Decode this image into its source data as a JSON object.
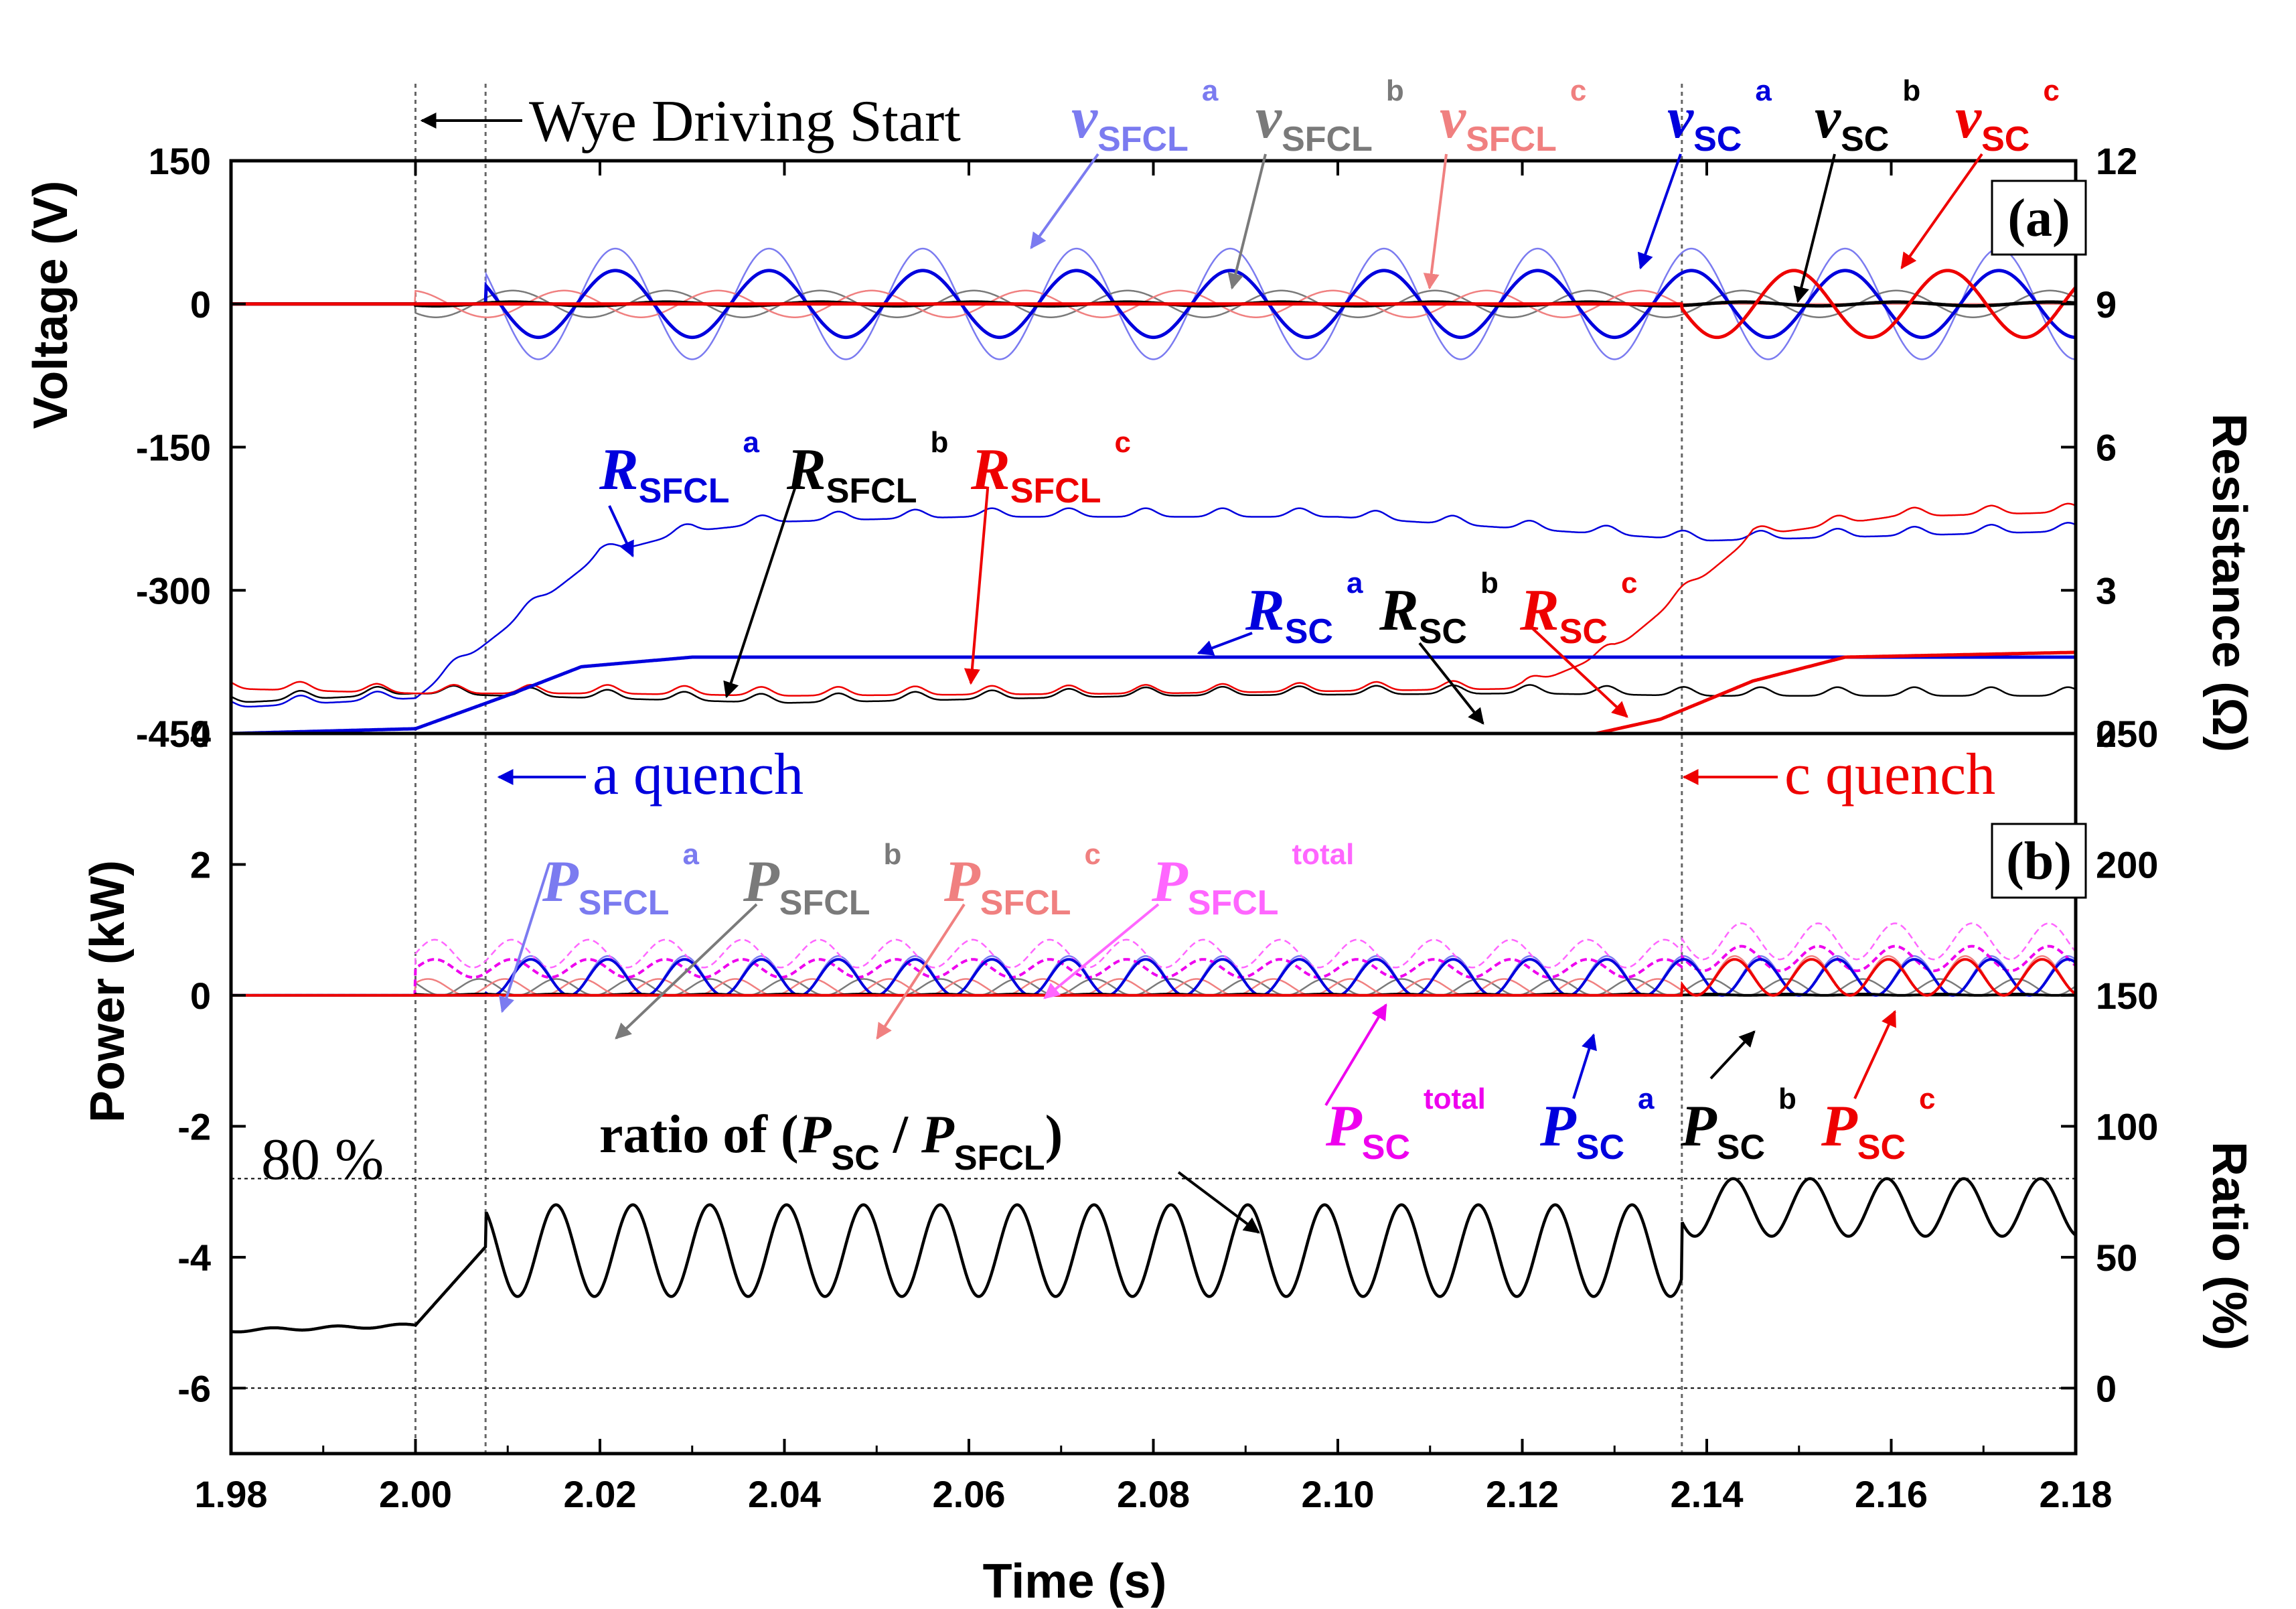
{
  "chart_data": [
    {
      "type": "line",
      "panel": "(a)",
      "xlabel": "Time (s)",
      "ylabel": "Voltage (V)",
      "y2label": "Resistance (Ω)",
      "xlim": [
        1.98,
        2.18
      ],
      "ylim": [
        -450,
        150
      ],
      "y2lim": [
        0,
        12
      ],
      "xticks": [
        "1.98",
        "2.00",
        "2.02",
        "2.04",
        "2.06",
        "2.08",
        "2.10",
        "2.12",
        "2.14",
        "2.16",
        "2.18"
      ],
      "yticks": [
        "150",
        "0",
        "-150",
        "-300",
        "-450"
      ],
      "y2ticks": [
        "12",
        "9",
        "6",
        "3",
        "0"
      ],
      "annotations": [
        "Wye Driving Start",
        "a quench",
        "c quench"
      ],
      "fault_start_s": 2.0,
      "a_quench_s": 2.0076,
      "c_quench_s": 2.1373,
      "series": [
        {
          "name": "v_SFCL^a",
          "axis": "voltage",
          "color": "#7b7bf0",
          "amplitude_V": 58,
          "phase_deg": -90,
          "start_s": 2.0076,
          "stop_s": 2.18
        },
        {
          "name": "v_SFCL^b",
          "axis": "voltage",
          "color": "#7a7a7a",
          "amplitude_V": 14,
          "phase_deg": 150,
          "start_s": 2.0,
          "stop_s": 2.18
        },
        {
          "name": "v_SFCL^c",
          "axis": "voltage",
          "color": "#f08080",
          "amplitude_V": 14,
          "phase_deg": 30,
          "start_s": 2.0,
          "stop_s": 2.1373,
          "amplitude_after_V": 50
        },
        {
          "name": "v_SC^a",
          "axis": "voltage",
          "color": "#0000dd",
          "amplitude_V": 35,
          "phase_deg": -90,
          "start_s": 2.0076,
          "stop_s": 2.18
        },
        {
          "name": "v_SC^b",
          "axis": "voltage",
          "color": "#000000",
          "amplitude_V": 2,
          "phase_deg": 150,
          "start_s": 2.0,
          "stop_s": 2.18
        },
        {
          "name": "v_SC^c",
          "axis": "voltage",
          "color": "#ee0000",
          "amplitude_V": 35,
          "phase_deg": 30,
          "start_s": 2.1373,
          "stop_s": 2.18
        },
        {
          "name": "R_SFCL^a",
          "axis": "resistance",
          "color": "#0000dd",
          "x": [
            1.98,
            2.0,
            2.008,
            2.02,
            2.03,
            2.04,
            2.06,
            2.1,
            2.14,
            2.18
          ],
          "y": [
            0.6,
            0.8,
            2.0,
            3.8,
            4.3,
            4.5,
            4.6,
            4.6,
            4.1,
            4.3
          ]
        },
        {
          "name": "R_SFCL^b",
          "axis": "resistance",
          "color": "#000000",
          "x": [
            1.98,
            2.0,
            2.02,
            2.04,
            2.08,
            2.12,
            2.14,
            2.18
          ],
          "y": [
            0.7,
            0.9,
            0.8,
            0.7,
            0.85,
            0.9,
            0.85,
            0.85
          ]
        },
        {
          "name": "R_SFCL^c",
          "axis": "resistance",
          "color": "#ee0000",
          "x": [
            1.98,
            2.0,
            2.02,
            2.04,
            2.08,
            2.12,
            2.13,
            2.145,
            2.16,
            2.18
          ],
          "y": [
            1.0,
            0.9,
            0.9,
            0.85,
            0.9,
            1.0,
            1.8,
            4.2,
            4.6,
            4.7
          ]
        },
        {
          "name": "R_SC^a",
          "axis": "resistance",
          "color": "#0000dd",
          "x": [
            1.98,
            2.0,
            2.01,
            2.018,
            2.03,
            2.06,
            2.18
          ],
          "y": [
            0,
            0.1,
            0.8,
            1.4,
            1.6,
            1.6,
            1.6
          ]
        },
        {
          "name": "R_SC^b",
          "axis": "resistance",
          "color": "#000000",
          "x": [
            1.98,
            2.18
          ],
          "y": [
            0,
            0
          ]
        },
        {
          "name": "R_SC^c",
          "axis": "resistance",
          "color": "#ee0000",
          "x": [
            1.98,
            2.128,
            2.135,
            2.145,
            2.155,
            2.18
          ],
          "y": [
            0,
            0,
            0.3,
            1.1,
            1.6,
            1.7
          ]
        }
      ]
    },
    {
      "type": "line",
      "panel": "(b)",
      "xlabel": "Time (s)",
      "ylabel": "Power (kW)",
      "y2label": "Ratio (%)",
      "xlim": [
        1.98,
        2.18
      ],
      "ylim": [
        -7,
        4
      ],
      "y2lim": [
        -25,
        250
      ],
      "yticks": [
        "4",
        "2",
        "0",
        "-2",
        "-4",
        "-6"
      ],
      "y2ticks": [
        "250",
        "200",
        "150",
        "100",
        "50",
        "0"
      ],
      "annotations": [
        "80 %",
        "ratio of (P_SC / P_SFCL)"
      ],
      "reference_lines_percent": [
        80,
        0
      ],
      "series": [
        {
          "name": "P_SFCL^a",
          "color": "#7b7bf0",
          "peak_kW": 0.6,
          "start_s": 2.0076
        },
        {
          "name": "P_SFCL^b",
          "color": "#7a7a7a",
          "peak_kW": 0.25,
          "start_s": 2.0
        },
        {
          "name": "P_SFCL^c",
          "color": "#f08080",
          "peak_kW": 0.25,
          "start_s": 2.0,
          "peak_after_kW": 0.6
        },
        {
          "name": "P_SFCL^total",
          "color": "#ff66ff",
          "dashed": true,
          "peak_kW": 0.85,
          "peak_after_kW": 1.1
        },
        {
          "name": "P_SC^total",
          "color": "#ee00ee",
          "dashed": true,
          "peak_kW": 0.55,
          "peak_after_kW": 0.75
        },
        {
          "name": "P_SC^a",
          "color": "#0000dd",
          "peak_kW": 0.55,
          "start_s": 2.0076
        },
        {
          "name": "P_SC^b",
          "color": "#000000",
          "peak_kW": 0.02,
          "start_s": 2.0
        },
        {
          "name": "P_SC^c",
          "color": "#ee0000",
          "peak_kW": 0.55,
          "start_s": 2.1373
        },
        {
          "name": "ratio",
          "axis": "ratio",
          "color": "#000000",
          "pre_fault_percent": [
            22,
            24
          ],
          "max_percent": 70,
          "min_percent": 35,
          "max_after_percent": 80,
          "min_after_percent": 58
        }
      ]
    }
  ],
  "labels": {
    "wye": "Wye Driving Start",
    "a_quench": "a quench",
    "c_quench": "c quench",
    "panel_a": "(a)",
    "panel_b": "(b)",
    "pct80": "80 %",
    "ratio_pre": "ratio of (",
    "ratio_p": "P",
    "ratio_sc": "SC",
    "ratio_slash": " / ",
    "ratio_sfcl": "SFCL",
    "ratio_close": ")",
    "xlabel": "Time (s)",
    "ylabel_v": "Voltage (V)",
    "ylabel_r": "Resistance (Ω)",
    "ylabel_p": "Power (kW)",
    "ylabel_ratio": "Ratio (%)"
  },
  "legend_symbols": [
    {
      "id": "l-vsfcla",
      "sym": "v",
      "sub": "SFCL",
      "sup": "a",
      "color": "#7b7bf0"
    },
    {
      "id": "l-vsfclb",
      "sym": "v",
      "sub": "SFCL",
      "sup": "b",
      "color": "#7a7a7a"
    },
    {
      "id": "l-vsfclc",
      "sym": "v",
      "sub": "SFCL",
      "sup": "c",
      "color": "#f08080"
    },
    {
      "id": "l-vsca",
      "sym": "v",
      "sub": "SC",
      "sup": "a",
      "color": "#0000dd"
    },
    {
      "id": "l-vscb",
      "sym": "v",
      "sub": "SC",
      "sup": "b",
      "color": "#000000"
    },
    {
      "id": "l-vscc",
      "sym": "v",
      "sub": "SC",
      "sup": "c",
      "color": "#ee0000"
    },
    {
      "id": "l-rsfcla",
      "sym": "R",
      "sub": "SFCL",
      "sup": "a",
      "color": "#0000dd"
    },
    {
      "id": "l-rsfclb",
      "sym": "R",
      "sub": "SFCL",
      "sup": "b",
      "color": "#000000"
    },
    {
      "id": "l-rsfclc",
      "sym": "R",
      "sub": "SFCL",
      "sup": "c",
      "color": "#ee0000"
    },
    {
      "id": "l-rsca",
      "sym": "R",
      "sub": "SC",
      "sup": "a",
      "color": "#0000dd"
    },
    {
      "id": "l-rscb",
      "sym": "R",
      "sub": "SC",
      "sup": "b",
      "color": "#000000"
    },
    {
      "id": "l-rscc",
      "sym": "R",
      "sub": "SC",
      "sup": "c",
      "color": "#ee0000"
    },
    {
      "id": "l-psfcla",
      "sym": "P",
      "sub": "SFCL",
      "sup": "a",
      "color": "#7b7bf0"
    },
    {
      "id": "l-psfclb",
      "sym": "P",
      "sub": "SFCL",
      "sup": "b",
      "color": "#7a7a7a"
    },
    {
      "id": "l-psfclc",
      "sym": "P",
      "sub": "SFCL",
      "sup": "c",
      "color": "#f08080"
    },
    {
      "id": "l-psfclt",
      "sym": "P",
      "sub": "SFCL",
      "sup": "total",
      "color": "#ff66ff"
    },
    {
      "id": "l-psct",
      "sym": "P",
      "sub": "SC",
      "sup": "total",
      "color": "#ee00ee"
    },
    {
      "id": "l-psca",
      "sym": "P",
      "sub": "SC",
      "sup": "a",
      "color": "#0000dd"
    },
    {
      "id": "l-pscb",
      "sym": "P",
      "sub": "SC",
      "sup": "b",
      "color": "#000000"
    },
    {
      "id": "l-pscc",
      "sym": "P",
      "sub": "SC",
      "sup": "c",
      "color": "#ee0000"
    }
  ]
}
